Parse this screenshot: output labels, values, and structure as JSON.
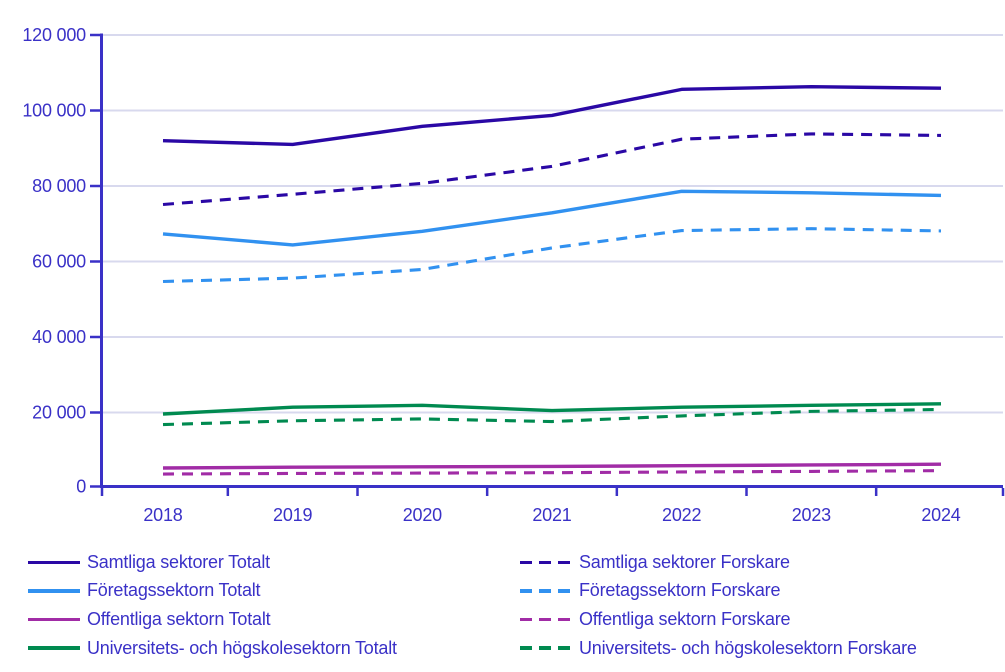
{
  "chart_data": {
    "type": "line",
    "x_categories": [
      "2018",
      "2019",
      "2020",
      "2021",
      "2022",
      "2023",
      "2024"
    ],
    "ylim": [
      0,
      120000
    ],
    "ytick_interval": 20000,
    "ytick_labels": [
      "0",
      "20 000",
      "40 000",
      "60 000",
      "80 000",
      "100 000",
      "120 000"
    ],
    "grid": "horizontal",
    "legend_position": "bottom, two columns (Totalt solid left, Forskare dashed right)",
    "series": [
      {
        "label": "Samtliga sektorer Totalt",
        "color": "#2a08a5",
        "style": "solid",
        "values": [
          92000,
          91000,
          95800,
          98700,
          105600,
          106300,
          105900
        ]
      },
      {
        "label": "Samtliga sektorer Forskare",
        "color": "#2a08a5",
        "style": "dashed",
        "values": [
          75100,
          77800,
          80700,
          85200,
          92400,
          93800,
          93400
        ]
      },
      {
        "label": "Företagssektorn Totalt",
        "color": "#3191f0",
        "style": "solid",
        "values": [
          67300,
          64400,
          68000,
          72900,
          78600,
          78200,
          77500
        ]
      },
      {
        "label": "Företagssektorn Forskare",
        "color": "#3191f0",
        "style": "dashed",
        "values": [
          54700,
          55600,
          57900,
          63600,
          68200,
          68700,
          68100
        ]
      },
      {
        "label": "Offentliga sektorn Totalt",
        "color": "#a12ca6",
        "style": "solid",
        "values": [
          5300,
          5500,
          5600,
          5700,
          5900,
          6100,
          6300
        ]
      },
      {
        "label": "Offentliga sektorn Forskare",
        "color": "#a12ca6",
        "style": "dashed",
        "values": [
          3700,
          3850,
          3950,
          4050,
          4250,
          4400,
          4600
        ]
      },
      {
        "label": "Universitets- och högskolesektorn Totalt",
        "color": "#008a50",
        "style": "solid",
        "values": [
          19600,
          21400,
          21900,
          20500,
          21400,
          21900,
          22300
        ]
      },
      {
        "label": "Universitets- och högskolesektorn Forskare",
        "color": "#008a50",
        "style": "dashed",
        "values": [
          16800,
          17800,
          18300,
          17600,
          19100,
          20300,
          20800
        ]
      }
    ]
  },
  "legend": {
    "columns": [
      [
        0,
        2,
        4,
        6
      ],
      [
        1,
        3,
        5,
        7
      ]
    ]
  },
  "colors": {
    "axis_and_text": "#3a31c7",
    "gridline": "#d8d9ee",
    "background": "#ffffff"
  }
}
